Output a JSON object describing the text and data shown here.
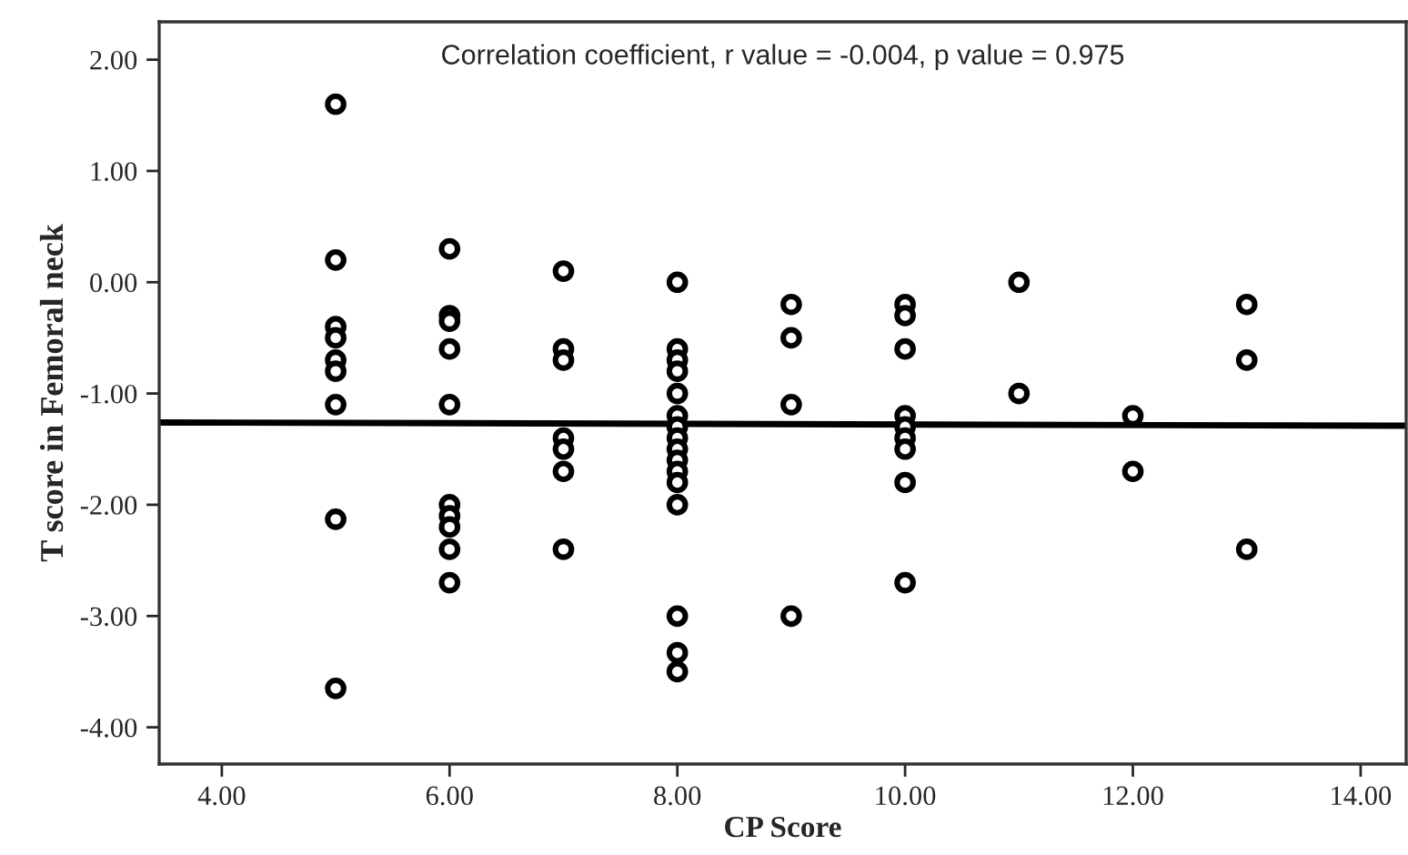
{
  "chart_data": {
    "type": "scatter",
    "xlabel": "CP Score",
    "ylabel": "T score in Femoral neck",
    "annotations": [
      "Correlation coefficient, r value = -0.004, p value = 0.975"
    ],
    "series": [
      {
        "color": "#000000",
        "marker": "circle",
        "x": [
          5,
          5,
          5,
          5,
          5,
          5,
          5,
          5,
          5,
          6,
          6,
          6,
          6,
          6,
          6,
          6,
          6,
          6,
          6,
          7,
          7,
          7,
          7,
          7,
          7,
          7,
          8,
          8,
          8,
          8,
          8,
          8,
          8,
          8,
          8,
          8,
          8,
          8,
          8,
          8,
          8,
          8,
          9,
          9,
          9,
          9,
          10,
          10,
          10,
          10,
          10,
          10,
          10,
          10,
          10,
          11,
          11,
          12,
          12,
          13,
          13,
          13
        ],
        "values": [
          1.6,
          0.2,
          -0.4,
          -0.5,
          -0.7,
          -0.8,
          -1.1,
          -2.13,
          -3.65,
          0.3,
          -0.3,
          -0.35,
          -0.6,
          -1.1,
          -2.0,
          -2.1,
          -2.2,
          -2.4,
          -2.7,
          0.1,
          -0.6,
          -0.7,
          -1.4,
          -1.5,
          -1.7,
          -2.4,
          0,
          -0.6,
          -0.7,
          -0.8,
          -1.0,
          -1.2,
          -1.3,
          -1.4,
          -1.5,
          -1.6,
          -1.7,
          -1.8,
          -2.0,
          -3.0,
          -3.33,
          -3.5,
          -0.2,
          -0.5,
          -1.1,
          -3.0,
          -0.2,
          -0.3,
          -0.6,
          -1.2,
          -1.3,
          -1.4,
          -1.5,
          -1.8,
          -2.7,
          0,
          -1.0,
          -1.2,
          -1.7,
          -0.2,
          -0.7,
          -2.4
        ]
      },
      {
        "type": "line",
        "color": "#000000",
        "x": [
          3.45,
          14.4
        ],
        "values": [
          -1.26,
          -1.29
        ]
      }
    ],
    "xlim": [
      3.45,
      14.4
    ],
    "ylim": [
      -4.33,
      2.34
    ],
    "xticks": [
      {
        "value": 4,
        "label": "4.00"
      },
      {
        "value": 6,
        "label": "6.00"
      },
      {
        "value": 8,
        "label": "8.00"
      },
      {
        "value": 10,
        "label": "10.00"
      },
      {
        "value": 12,
        "label": "12.00"
      },
      {
        "value": 14,
        "label": "14.00"
      }
    ],
    "yticks": [
      {
        "value": -4,
        "label": "-4.00"
      },
      {
        "value": -3,
        "label": "-3.00"
      },
      {
        "value": -2,
        "label": "-2.00"
      },
      {
        "value": -1,
        "label": "-1.00"
      },
      {
        "value": 0,
        "label": "0.00"
      },
      {
        "value": 1,
        "label": "1.00"
      },
      {
        "value": 2,
        "label": "2.00"
      }
    ],
    "grid": false,
    "legend": false
  }
}
